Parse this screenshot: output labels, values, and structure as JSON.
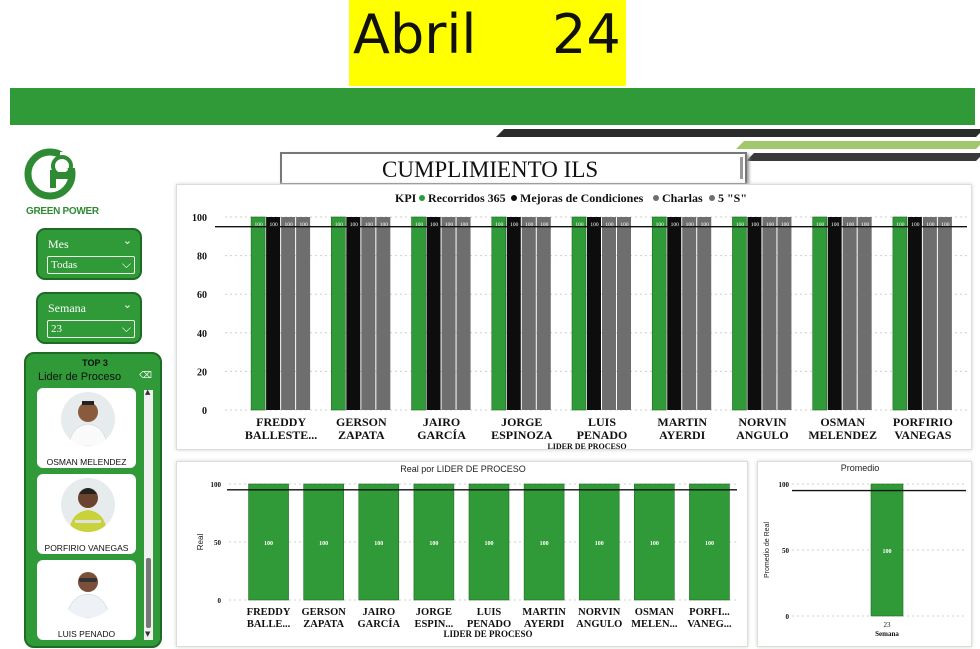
{
  "header": {
    "month": "Abril",
    "year": "24"
  },
  "brand": {
    "name": "GREEN POWER",
    "color": "#2f9a37"
  },
  "filters": {
    "mes": {
      "label": "Mes",
      "value": "Todas"
    },
    "semana": {
      "label": "Semana",
      "value": "23"
    }
  },
  "top3": {
    "title": "TOP 3",
    "subtitle": "Lider de Proceso",
    "people": [
      "OSMAN MELENDEZ",
      "PORFIRIO VANEGAS",
      "LUIS PENADO"
    ]
  },
  "dashboard_title": "CUMPLIMIENTO ILS",
  "colors": {
    "green": "#2f9a37",
    "black": "#0d0d0d",
    "gray": "#6e6e6e"
  },
  "chart_data": [
    {
      "type": "bar",
      "legend_title": "KPI",
      "series": [
        {
          "name": "Recorridos 365",
          "color": "#2f9a37",
          "values": [
            100,
            100,
            100,
            100,
            100,
            100,
            100,
            100,
            100
          ]
        },
        {
          "name": "Mejoras de Condiciones",
          "color": "#0d0d0d",
          "values": [
            100,
            100,
            100,
            100,
            100,
            100,
            100,
            100,
            100
          ]
        },
        {
          "name": "Charlas",
          "color": "#6e6e6e",
          "values": [
            100,
            100,
            100,
            100,
            100,
            100,
            100,
            100,
            100
          ]
        },
        {
          "name": "5 \"S\"",
          "color": "#6e6e6e",
          "values": [
            100,
            100,
            100,
            100,
            100,
            100,
            100,
            100,
            100
          ]
        }
      ],
      "categories": [
        [
          "FREDDY",
          "BALLESTE..."
        ],
        [
          "GERSON",
          "ZAPATA"
        ],
        [
          "JAIRO",
          "GARCÍA"
        ],
        [
          "JORGE",
          "ESPINOZA"
        ],
        [
          "LUIS",
          "PENADO"
        ],
        [
          "MARTIN",
          "AYERDI"
        ],
        [
          "NORVIN",
          "ANGULO"
        ],
        [
          "OSMAN",
          "MELENDEZ"
        ],
        [
          "PORFIRIO",
          "VANEGAS"
        ]
      ],
      "bar_label": "100",
      "xlabel": "LIDER DE PROCESO",
      "yticks": [
        "0",
        "20",
        "40",
        "60",
        "80",
        "100"
      ],
      "ylim": [
        0,
        100
      ],
      "reference_line": 95,
      "grid": true
    },
    {
      "type": "bar",
      "title": "Real por LIDER DE PROCESO",
      "ylabel": "Real",
      "xlabel": "LIDER DE PROCESO",
      "categories": [
        [
          "FREDDY",
          "BALLE..."
        ],
        [
          "GERSON",
          "ZAPATA"
        ],
        [
          "JAIRO",
          "GARCÍA"
        ],
        [
          "JORGE",
          "ESPIN..."
        ],
        [
          "LUIS",
          "PENADO"
        ],
        [
          "MARTIN",
          "AYERDI"
        ],
        [
          "NORVIN",
          "ANGULO"
        ],
        [
          "OSMAN",
          "MELEN..."
        ],
        [
          "PORFI...",
          "VANEG..."
        ]
      ],
      "values": [
        100,
        100,
        100,
        100,
        100,
        100,
        100,
        100,
        100
      ],
      "bar_label": "100",
      "yticks": [
        "0",
        "50",
        "100"
      ],
      "ylim": [
        0,
        100
      ],
      "reference_line": 95,
      "grid": true
    },
    {
      "type": "bar",
      "title": "Promedio",
      "ylabel": "Promedio de Real",
      "xlabel": "Semana",
      "categories": [
        "23"
      ],
      "values": [
        100
      ],
      "bar_label": "100",
      "yticks": [
        "0",
        "50",
        "100"
      ],
      "ylim": [
        0,
        100
      ],
      "reference_line": 95,
      "grid": true
    }
  ]
}
